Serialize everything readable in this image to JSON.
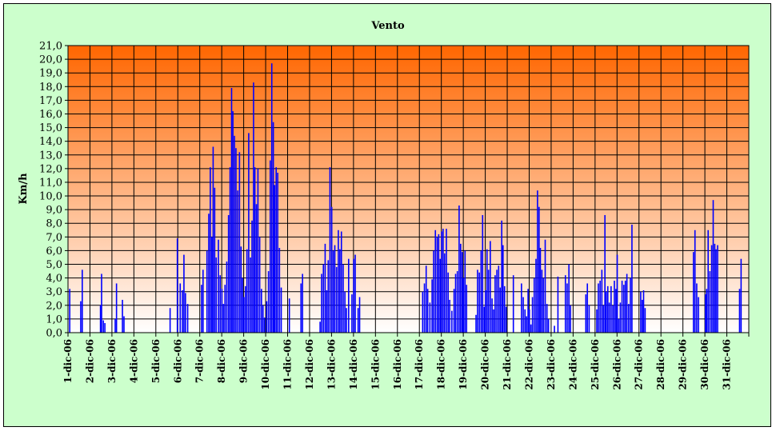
{
  "chart_data": {
    "type": "bar",
    "title": "Vento",
    "ylabel": "Km/h",
    "xlabel": "",
    "ylim": [
      0,
      21
    ],
    "ytick_step": 1,
    "grid": true,
    "series_color": "#0000ff",
    "background_gradient": [
      "#ffffff",
      "#ff6600"
    ],
    "frame_color": "#ccffcc",
    "categories": [
      "1-dic-06",
      "2-dic-06",
      "3-dic-06",
      "4-dic-06",
      "5-dic-06",
      "6-dic-06",
      "7-dic-06",
      "8-dic-06",
      "9-dic-06",
      "10-dic-06",
      "11-dic-06",
      "12-dic-06",
      "13-dic-06",
      "14-dic-06",
      "15-dic-06",
      "16-dic-06",
      "17-dic-06",
      "18-dic-06",
      "19-dic-06",
      "20-dic-06",
      "21-dic-06",
      "22-dic-06",
      "23-dic-06",
      "24-dic-06",
      "25-dic-06",
      "26-dic-06",
      "27-dic-06",
      "28-dic-06",
      "29-dic-06",
      "30-dic-06",
      "31-dic-06"
    ],
    "bars": [
      {
        "day": 0.05,
        "v": 3.2
      },
      {
        "day": 0.55,
        "v": 2.3
      },
      {
        "day": 0.62,
        "v": 4.6
      },
      {
        "day": 1.45,
        "v": 2.0
      },
      {
        "day": 1.5,
        "v": 4.3
      },
      {
        "day": 1.58,
        "v": 0.9
      },
      {
        "day": 1.65,
        "v": 0.7
      },
      {
        "day": 2.12,
        "v": 1.0
      },
      {
        "day": 2.18,
        "v": 3.6
      },
      {
        "day": 2.45,
        "v": 2.4
      },
      {
        "day": 2.52,
        "v": 1.2
      },
      {
        "day": 4.62,
        "v": 1.8
      },
      {
        "day": 4.95,
        "v": 6.9
      },
      {
        "day": 5.08,
        "v": 3.6
      },
      {
        "day": 5.18,
        "v": 3.1
      },
      {
        "day": 5.25,
        "v": 5.7
      },
      {
        "day": 5.32,
        "v": 2.9
      },
      {
        "day": 5.42,
        "v": 2.1
      },
      {
        "day": 6.05,
        "v": 3.5
      },
      {
        "day": 6.12,
        "v": 4.6
      },
      {
        "day": 6.3,
        "v": 6.0
      },
      {
        "day": 6.38,
        "v": 8.7
      },
      {
        "day": 6.45,
        "v": 12.1
      },
      {
        "day": 6.52,
        "v": 7.0
      },
      {
        "day": 6.58,
        "v": 13.6
      },
      {
        "day": 6.65,
        "v": 10.6
      },
      {
        "day": 6.72,
        "v": 5.5
      },
      {
        "day": 6.82,
        "v": 6.8
      },
      {
        "day": 6.9,
        "v": 4.2
      },
      {
        "day": 6.98,
        "v": 3.2
      },
      {
        "day": 7.05,
        "v": 2.1
      },
      {
        "day": 7.12,
        "v": 3.5
      },
      {
        "day": 7.2,
        "v": 5.2
      },
      {
        "day": 7.28,
        "v": 8.6
      },
      {
        "day": 7.35,
        "v": 12.1
      },
      {
        "day": 7.42,
        "v": 17.9
      },
      {
        "day": 7.48,
        "v": 16.2
      },
      {
        "day": 7.55,
        "v": 14.4
      },
      {
        "day": 7.62,
        "v": 13.5
      },
      {
        "day": 7.7,
        "v": 10.4
      },
      {
        "day": 7.78,
        "v": 13.2
      },
      {
        "day": 7.85,
        "v": 6.3
      },
      {
        "day": 7.92,
        "v": 4.0
      },
      {
        "day": 7.98,
        "v": 2.6
      },
      {
        "day": 8.05,
        "v": 3.4
      },
      {
        "day": 8.12,
        "v": 6.1
      },
      {
        "day": 8.2,
        "v": 14.6
      },
      {
        "day": 8.28,
        "v": 5.5
      },
      {
        "day": 8.35,
        "v": 8.2
      },
      {
        "day": 8.42,
        "v": 18.3
      },
      {
        "day": 8.48,
        "v": 12.1
      },
      {
        "day": 8.55,
        "v": 9.4
      },
      {
        "day": 8.62,
        "v": 12.0
      },
      {
        "day": 8.7,
        "v": 7.0
      },
      {
        "day": 8.78,
        "v": 3.2
      },
      {
        "day": 8.85,
        "v": 2.0
      },
      {
        "day": 8.92,
        "v": 1.1
      },
      {
        "day": 9.02,
        "v": 2.3
      },
      {
        "day": 9.1,
        "v": 4.5
      },
      {
        "day": 9.18,
        "v": 12.6
      },
      {
        "day": 9.25,
        "v": 19.7
      },
      {
        "day": 9.32,
        "v": 15.4
      },
      {
        "day": 9.38,
        "v": 10.8
      },
      {
        "day": 9.45,
        "v": 12.1
      },
      {
        "day": 9.52,
        "v": 11.7
      },
      {
        "day": 9.6,
        "v": 6.2
      },
      {
        "day": 9.68,
        "v": 3.3
      },
      {
        "day": 10.05,
        "v": 2.5
      },
      {
        "day": 10.58,
        "v": 3.6
      },
      {
        "day": 10.65,
        "v": 4.3
      },
      {
        "day": 11.45,
        "v": 0.8
      },
      {
        "day": 11.52,
        "v": 4.3
      },
      {
        "day": 11.6,
        "v": 5.0
      },
      {
        "day": 11.68,
        "v": 6.5
      },
      {
        "day": 11.75,
        "v": 3.1
      },
      {
        "day": 11.82,
        "v": 5.3
      },
      {
        "day": 11.9,
        "v": 12.1
      },
      {
        "day": 11.98,
        "v": 9.2
      },
      {
        "day": 12.05,
        "v": 6.0
      },
      {
        "day": 12.12,
        "v": 6.4
      },
      {
        "day": 12.2,
        "v": 4.8
      },
      {
        "day": 12.28,
        "v": 7.5
      },
      {
        "day": 12.35,
        "v": 6.1
      },
      {
        "day": 12.42,
        "v": 7.4
      },
      {
        "day": 12.5,
        "v": 5.0
      },
      {
        "day": 12.58,
        "v": 3.0
      },
      {
        "day": 12.65,
        "v": 1.8
      },
      {
        "day": 12.75,
        "v": 5.4
      },
      {
        "day": 12.9,
        "v": 2.8
      },
      {
        "day": 12.98,
        "v": 5.4
      },
      {
        "day": 13.05,
        "v": 5.7
      },
      {
        "day": 13.18,
        "v": 1.8
      },
      {
        "day": 13.25,
        "v": 2.6
      },
      {
        "day": 16.12,
        "v": 3.0
      },
      {
        "day": 16.2,
        "v": 3.6
      },
      {
        "day": 16.28,
        "v": 4.9
      },
      {
        "day": 16.35,
        "v": 3.2
      },
      {
        "day": 16.45,
        "v": 2.2
      },
      {
        "day": 16.55,
        "v": 3.9
      },
      {
        "day": 16.62,
        "v": 6.0
      },
      {
        "day": 16.7,
        "v": 7.5
      },
      {
        "day": 16.78,
        "v": 7.0
      },
      {
        "day": 16.85,
        "v": 7.2
      },
      {
        "day": 16.92,
        "v": 5.4
      },
      {
        "day": 16.98,
        "v": 7.4
      },
      {
        "day": 17.05,
        "v": 7.6
      },
      {
        "day": 17.12,
        "v": 5.8
      },
      {
        "day": 17.2,
        "v": 7.6
      },
      {
        "day": 17.28,
        "v": 4.4
      },
      {
        "day": 17.35,
        "v": 2.4
      },
      {
        "day": 17.45,
        "v": 1.6
      },
      {
        "day": 17.55,
        "v": 3.2
      },
      {
        "day": 17.62,
        "v": 4.3
      },
      {
        "day": 17.7,
        "v": 4.5
      },
      {
        "day": 17.78,
        "v": 9.3
      },
      {
        "day": 17.85,
        "v": 6.5
      },
      {
        "day": 17.92,
        "v": 5.9
      },
      {
        "day": 17.98,
        "v": 4.0
      },
      {
        "day": 18.05,
        "v": 6.0
      },
      {
        "day": 18.12,
        "v": 3.5
      },
      {
        "day": 18.55,
        "v": 1.3
      },
      {
        "day": 18.62,
        "v": 4.6
      },
      {
        "day": 18.7,
        "v": 4.4
      },
      {
        "day": 18.78,
        "v": 6.0
      },
      {
        "day": 18.85,
        "v": 8.6
      },
      {
        "day": 18.92,
        "v": 1.9
      },
      {
        "day": 18.98,
        "v": 3.1
      },
      {
        "day": 19.05,
        "v": 6.1
      },
      {
        "day": 19.12,
        "v": 4.6
      },
      {
        "day": 19.2,
        "v": 6.7
      },
      {
        "day": 19.28,
        "v": 2.5
      },
      {
        "day": 19.35,
        "v": 1.7
      },
      {
        "day": 19.42,
        "v": 4.2
      },
      {
        "day": 19.5,
        "v": 4.6
      },
      {
        "day": 19.58,
        "v": 4.9
      },
      {
        "day": 19.65,
        "v": 3.3
      },
      {
        "day": 19.72,
        "v": 8.2
      },
      {
        "day": 19.78,
        "v": 6.4
      },
      {
        "day": 19.85,
        "v": 3.4
      },
      {
        "day": 19.92,
        "v": 1.9
      },
      {
        "day": 20.25,
        "v": 4.2
      },
      {
        "day": 20.62,
        "v": 3.6
      },
      {
        "day": 20.7,
        "v": 2.6
      },
      {
        "day": 20.78,
        "v": 1.7
      },
      {
        "day": 20.85,
        "v": 1.2
      },
      {
        "day": 20.92,
        "v": 3.2
      },
      {
        "day": 20.98,
        "v": 1.7
      },
      {
        "day": 21.05,
        "v": 0.6
      },
      {
        "day": 21.12,
        "v": 2.6
      },
      {
        "day": 21.2,
        "v": 4.0
      },
      {
        "day": 21.28,
        "v": 5.4
      },
      {
        "day": 21.35,
        "v": 10.4
      },
      {
        "day": 21.42,
        "v": 9.2
      },
      {
        "day": 21.48,
        "v": 6.2
      },
      {
        "day": 21.55,
        "v": 4.6
      },
      {
        "day": 21.62,
        "v": 4.0
      },
      {
        "day": 21.7,
        "v": 6.8
      },
      {
        "day": 21.78,
        "v": 2.1
      },
      {
        "day": 21.85,
        "v": 1.0
      },
      {
        "day": 22.12,
        "v": 0.5
      },
      {
        "day": 22.28,
        "v": 4.1
      },
      {
        "day": 22.62,
        "v": 4.2
      },
      {
        "day": 22.7,
        "v": 3.6
      },
      {
        "day": 22.78,
        "v": 5.0
      },
      {
        "day": 22.85,
        "v": 2.0
      },
      {
        "day": 23.55,
        "v": 2.8
      },
      {
        "day": 23.62,
        "v": 3.6
      },
      {
        "day": 23.7,
        "v": 2.0
      },
      {
        "day": 24.05,
        "v": 1.7
      },
      {
        "day": 24.12,
        "v": 3.6
      },
      {
        "day": 24.2,
        "v": 3.8
      },
      {
        "day": 24.28,
        "v": 4.6
      },
      {
        "day": 24.35,
        "v": 2.0
      },
      {
        "day": 24.42,
        "v": 8.6
      },
      {
        "day": 24.48,
        "v": 3.0
      },
      {
        "day": 24.55,
        "v": 3.4
      },
      {
        "day": 24.62,
        "v": 2.2
      },
      {
        "day": 24.7,
        "v": 3.4
      },
      {
        "day": 24.78,
        "v": 2.0
      },
      {
        "day": 24.85,
        "v": 3.8
      },
      {
        "day": 24.92,
        "v": 3.2
      },
      {
        "day": 24.98,
        "v": 5.7
      },
      {
        "day": 25.05,
        "v": 1.0
      },
      {
        "day": 25.12,
        "v": 2.2
      },
      {
        "day": 25.2,
        "v": 3.8
      },
      {
        "day": 25.28,
        "v": 3.5
      },
      {
        "day": 25.35,
        "v": 3.8
      },
      {
        "day": 25.42,
        "v": 4.3
      },
      {
        "day": 25.5,
        "v": 2.1
      },
      {
        "day": 25.58,
        "v": 4.0
      },
      {
        "day": 25.65,
        "v": 7.9
      },
      {
        "day": 26.05,
        "v": 3.0
      },
      {
        "day": 26.12,
        "v": 2.4
      },
      {
        "day": 26.18,
        "v": 3.1
      },
      {
        "day": 26.25,
        "v": 1.8
      },
      {
        "day": 28.45,
        "v": 5.9
      },
      {
        "day": 28.52,
        "v": 7.5
      },
      {
        "day": 28.6,
        "v": 3.6
      },
      {
        "day": 28.68,
        "v": 2.6
      },
      {
        "day": 29.0,
        "v": 2.8
      },
      {
        "day": 29.05,
        "v": 3.2
      },
      {
        "day": 29.12,
        "v": 7.5
      },
      {
        "day": 29.2,
        "v": 4.5
      },
      {
        "day": 29.28,
        "v": 6.4
      },
      {
        "day": 29.35,
        "v": 9.7
      },
      {
        "day": 29.42,
        "v": 6.5
      },
      {
        "day": 29.48,
        "v": 6.1
      },
      {
        "day": 29.55,
        "v": 6.4
      },
      {
        "day": 30.55,
        "v": 3.2
      },
      {
        "day": 30.62,
        "v": 5.4
      }
    ]
  }
}
